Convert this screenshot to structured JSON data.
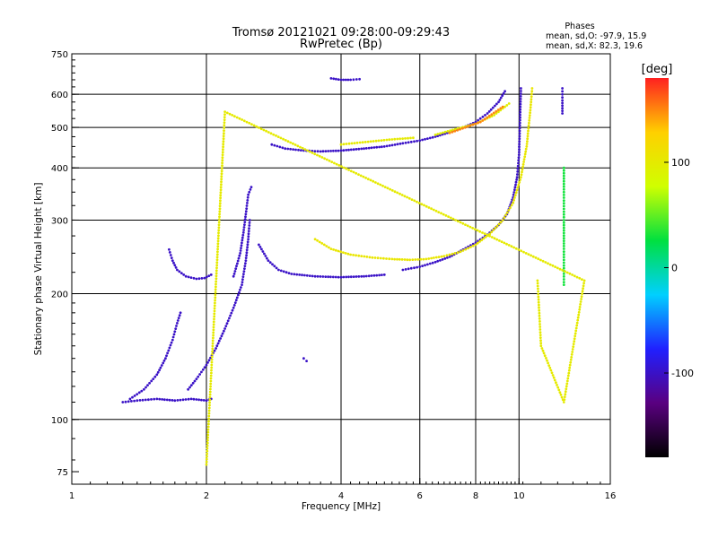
{
  "title_line1": "Tromsø 20121021 09:28:00-09:29:43",
  "title_line2": "RwPretec (Bp)",
  "stats": {
    "heading": "Phases",
    "line1": "mean, sd,O: -97.9, 15.9",
    "line2": "mean, sd,X:  82.3, 19.6"
  },
  "colorbar": {
    "label": "[deg]",
    "range": [
      -180,
      180
    ],
    "ticks": [
      {
        "value": 100,
        "label": "100"
      },
      {
        "value": 0,
        "label": "0"
      },
      {
        "value": -100,
        "label": "-100"
      }
    ],
    "stops": [
      "#000000",
      "#5a0080",
      "#2020ff",
      "#00d0ff",
      "#00e040",
      "#d0ff00",
      "#ffd000",
      "#ff2020"
    ]
  },
  "chart_data": {
    "type": "scatter",
    "title": "Tromsø 20121021 09:28:00-09:29:43",
    "subtitle": "RwPretec (Bp)",
    "xlabel": "Frequency [MHz]",
    "ylabel": "Stationary phase Virtual Height [km]",
    "x_scale": "log",
    "y_scale": "log",
    "xlim": [
      1,
      16
    ],
    "ylim": [
      70,
      750
    ],
    "x_ticks": [
      {
        "value": 1,
        "label": "1"
      },
      {
        "value": 2,
        "label": "2"
      },
      {
        "value": 4,
        "label": "4"
      },
      {
        "value": 6,
        "label": "6"
      },
      {
        "value": 8,
        "label": "8"
      },
      {
        "value": 10,
        "label": "10"
      },
      {
        "value": 16,
        "label": "16"
      }
    ],
    "y_ticks": [
      {
        "value": 75,
        "label": "75"
      },
      {
        "value": 100,
        "label": "100"
      },
      {
        "value": 200,
        "label": "200"
      },
      {
        "value": 300,
        "label": "300"
      },
      {
        "value": 400,
        "label": "400"
      },
      {
        "value": 500,
        "label": "500"
      },
      {
        "value": 600,
        "label": "600"
      },
      {
        "value": 750,
        "label": "750"
      }
    ],
    "x_grid": [
      2,
      4,
      6,
      8,
      10
    ],
    "y_grid": [
      100,
      200,
      300,
      400,
      500,
      600
    ],
    "traces": [
      {
        "phase": -100,
        "points": [
          [
            1.35,
            112
          ],
          [
            1.45,
            118
          ],
          [
            1.55,
            128
          ],
          [
            1.62,
            140
          ],
          [
            1.68,
            155
          ],
          [
            1.72,
            170
          ],
          [
            1.75,
            180
          ]
        ]
      },
      {
        "phase": -100,
        "points": [
          [
            1.3,
            110
          ],
          [
            1.4,
            111
          ],
          [
            1.55,
            112
          ],
          [
            1.7,
            111
          ],
          [
            1.85,
            112
          ],
          [
            2.0,
            111
          ],
          [
            2.05,
            112
          ]
        ]
      },
      {
        "phase": -100,
        "points": [
          [
            1.82,
            118
          ],
          [
            1.9,
            125
          ],
          [
            2.0,
            135
          ],
          [
            2.1,
            148
          ],
          [
            2.2,
            165
          ],
          [
            2.3,
            185
          ],
          [
            2.4,
            210
          ],
          [
            2.45,
            240
          ],
          [
            2.48,
            270
          ],
          [
            2.5,
            300
          ]
        ]
      },
      {
        "phase": -100,
        "points": [
          [
            2.3,
            220
          ],
          [
            2.38,
            250
          ],
          [
            2.42,
            280
          ],
          [
            2.45,
            310
          ],
          [
            2.48,
            345
          ],
          [
            2.52,
            360
          ]
        ]
      },
      {
        "phase": -100,
        "points": [
          [
            1.65,
            255
          ],
          [
            1.68,
            240
          ],
          [
            1.72,
            228
          ],
          [
            1.8,
            220
          ],
          [
            1.9,
            217
          ],
          [
            1.98,
            218
          ],
          [
            2.05,
            222
          ]
        ]
      },
      {
        "phase": -100,
        "points": [
          [
            2.62,
            262
          ],
          [
            2.75,
            240
          ],
          [
            2.9,
            228
          ],
          [
            3.1,
            223
          ],
          [
            3.5,
            220
          ],
          [
            4.0,
            219
          ],
          [
            4.5,
            220
          ],
          [
            5.0,
            222
          ]
        ]
      },
      {
        "phase": -100,
        "points": [
          [
            5.5,
            228
          ],
          [
            6.0,
            232
          ],
          [
            6.5,
            238
          ],
          [
            7.0,
            245
          ],
          [
            7.5,
            255
          ],
          [
            8.0,
            265
          ],
          [
            8.5,
            277
          ],
          [
            9.0,
            292
          ],
          [
            9.4,
            310
          ],
          [
            9.7,
            340
          ],
          [
            9.9,
            380
          ],
          [
            10.0,
            430
          ],
          [
            10.05,
            520
          ],
          [
            10.1,
            620
          ]
        ]
      },
      {
        "phase": -100,
        "points": [
          [
            2.8,
            455
          ],
          [
            3.0,
            445
          ],
          [
            3.3,
            440
          ],
          [
            3.6,
            438
          ],
          [
            4.0,
            440
          ],
          [
            4.5,
            445
          ],
          [
            5.0,
            450
          ],
          [
            5.5,
            458
          ],
          [
            6.0,
            465
          ],
          [
            6.5,
            475
          ],
          [
            7.0,
            487
          ],
          [
            7.5,
            500
          ],
          [
            8.0,
            515
          ],
          [
            8.5,
            540
          ],
          [
            9.0,
            575
          ],
          [
            9.3,
            610
          ]
        ]
      },
      {
        "phase": -100,
        "points": [
          [
            3.8,
            655
          ],
          [
            4.0,
            650
          ],
          [
            4.2,
            650
          ],
          [
            4.4,
            652
          ]
        ]
      },
      {
        "phase": -100,
        "points": [
          [
            3.3,
            140
          ],
          [
            3.35,
            138
          ]
        ]
      },
      {
        "phase": 105,
        "points": [
          [
            3.5,
            270
          ],
          [
            3.8,
            256
          ],
          [
            4.2,
            248
          ],
          [
            4.7,
            244
          ],
          [
            5.2,
            242
          ],
          [
            5.7,
            241
          ],
          [
            6.2,
            242
          ],
          [
            6.8,
            246
          ],
          [
            7.4,
            252
          ],
          [
            8.0,
            262
          ],
          [
            8.6,
            278
          ],
          [
            9.2,
            300
          ],
          [
            9.7,
            330
          ],
          [
            10.1,
            380
          ],
          [
            10.4,
            450
          ],
          [
            10.6,
            550
          ],
          [
            10.7,
            620
          ]
        ]
      },
      {
        "phase": 100,
        "points": [
          [
            4.0,
            455
          ],
          [
            4.6,
            462
          ],
          [
            5.2,
            468
          ],
          [
            5.8,
            472
          ]
        ]
      },
      {
        "phase": 95,
        "points": [
          [
            6.5,
            480
          ],
          [
            7.2,
            495
          ],
          [
            8.0,
            510
          ],
          [
            8.8,
            535
          ],
          [
            9.5,
            570
          ]
        ]
      },
      {
        "phase": 150,
        "points": [
          [
            7.0,
            485
          ],
          [
            8.2,
            515
          ],
          [
            9.2,
            560
          ]
        ]
      },
      {
        "phase": 30,
        "points": [
          [
            12.6,
            400
          ],
          [
            12.6,
            350
          ],
          [
            12.6,
            300
          ],
          [
            12.6,
            260
          ],
          [
            12.6,
            230
          ],
          [
            12.6,
            210
          ]
        ]
      },
      {
        "phase": -100,
        "points": [
          [
            12.5,
            620
          ],
          [
            12.5,
            580
          ],
          [
            12.5,
            540
          ]
        ]
      },
      {
        "phase": 100,
        "points": [
          [
            11.0,
            215
          ],
          [
            11.2,
            150
          ],
          [
            12.6,
            110
          ],
          [
            14.0,
            215
          ],
          [
            2.2,
            545
          ],
          [
            2.0,
            78
          ]
        ]
      }
    ]
  }
}
